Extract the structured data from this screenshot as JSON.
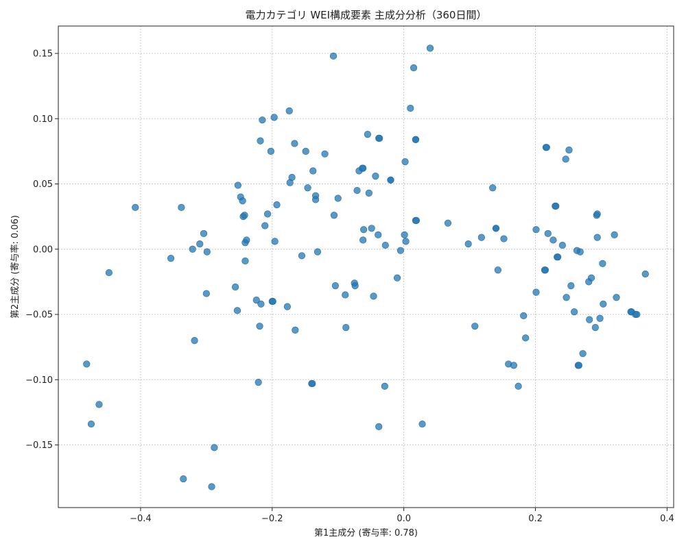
{
  "chart_data": {
    "type": "scatter",
    "title": "電力カテゴリ WEI構成要素 主成分分析（360日間）",
    "xlabel": "第1主成分 (寄与率: 0.78)",
    "ylabel": "第2主成分 (寄与率: 0.06)",
    "xlim": [
      -0.525,
      0.41
    ],
    "ylim": [
      -0.198,
      0.171
    ],
    "xticks": [
      -0.4,
      -0.2,
      0.0,
      0.2,
      0.4
    ],
    "xtick_labels": [
      "−0.4",
      "−0.2",
      "0.0",
      "0.2",
      "0.4"
    ],
    "yticks": [
      -0.15,
      -0.1,
      -0.05,
      0.0,
      0.05,
      0.1,
      0.15
    ],
    "ytick_labels": [
      "−0.15",
      "−0.10",
      "−0.05",
      "0.00",
      "0.05",
      "0.10",
      "0.15"
    ],
    "grid": true,
    "color": "#1f77b4",
    "points": [
      [
        -0.482,
        -0.088
      ],
      [
        -0.475,
        -0.134
      ],
      [
        -0.463,
        -0.119
      ],
      [
        -0.448,
        -0.018
      ],
      [
        -0.408,
        0.032
      ],
      [
        -0.354,
        -0.007
      ],
      [
        -0.338,
        0.032
      ],
      [
        -0.335,
        -0.176
      ],
      [
        -0.321,
        0.0
      ],
      [
        -0.318,
        -0.07
      ],
      [
        -0.31,
        0.004
      ],
      [
        -0.304,
        0.012
      ],
      [
        -0.3,
        -0.034
      ],
      [
        -0.299,
        -0.002
      ],
      [
        -0.292,
        -0.182
      ],
      [
        -0.288,
        -0.152
      ],
      [
        -0.256,
        -0.029
      ],
      [
        -0.253,
        -0.047
      ],
      [
        -0.252,
        0.049
      ],
      [
        -0.248,
        0.04
      ],
      [
        -0.245,
        0.037
      ],
      [
        -0.244,
        0.025
      ],
      [
        -0.242,
        0.026
      ],
      [
        -0.241,
        0.005
      ],
      [
        -0.241,
        -0.009
      ],
      [
        -0.239,
        0.007
      ],
      [
        -0.224,
        -0.039
      ],
      [
        -0.221,
        -0.102
      ],
      [
        -0.219,
        -0.059
      ],
      [
        -0.218,
        0.083
      ],
      [
        -0.217,
        -0.042
      ],
      [
        -0.215,
        0.099
      ],
      [
        -0.211,
        0.018
      ],
      [
        -0.207,
        0.027
      ],
      [
        -0.202,
        0.075
      ],
      [
        -0.2,
        -0.04
      ],
      [
        -0.199,
        -0.04
      ],
      [
        -0.197,
        0.101
      ],
      [
        -0.196,
        0.006
      ],
      [
        -0.193,
        0.034
      ],
      [
        -0.177,
        -0.044
      ],
      [
        -0.174,
        0.106
      ],
      [
        -0.173,
        0.051
      ],
      [
        -0.17,
        0.055
      ],
      [
        -0.166,
        0.081
      ],
      [
        -0.165,
        -0.062
      ],
      [
        -0.155,
        -0.005
      ],
      [
        -0.149,
        0.075
      ],
      [
        -0.146,
        0.047
      ],
      [
        -0.14,
        -0.103
      ],
      [
        -0.139,
        -0.103
      ],
      [
        -0.138,
        0.06
      ],
      [
        -0.134,
        0.041
      ],
      [
        -0.134,
        0.038
      ],
      [
        -0.131,
        -0.002
      ],
      [
        -0.12,
        0.073
      ],
      [
        -0.107,
        0.148
      ],
      [
        -0.106,
        0.026
      ],
      [
        -0.104,
        -0.028
      ],
      [
        -0.1,
        0.039
      ],
      [
        -0.089,
        -0.035
      ],
      [
        -0.088,
        -0.06
      ],
      [
        -0.075,
        -0.026
      ],
      [
        -0.074,
        -0.028
      ],
      [
        -0.071,
        0.045
      ],
      [
        -0.068,
        0.06
      ],
      [
        -0.063,
        0.062
      ],
      [
        -0.062,
        0.062
      ],
      [
        -0.062,
        0.007
      ],
      [
        -0.061,
        0.015
      ],
      [
        -0.055,
        0.088
      ],
      [
        -0.053,
        0.043
      ],
      [
        -0.049,
        0.016
      ],
      [
        -0.046,
        -0.036
      ],
      [
        -0.043,
        0.056
      ],
      [
        -0.039,
        0.011
      ],
      [
        -0.038,
        0.085
      ],
      [
        -0.038,
        -0.136
      ],
      [
        -0.037,
        0.085
      ],
      [
        -0.029,
        -0.105
      ],
      [
        -0.028,
        0.003
      ],
      [
        -0.02,
        0.053
      ],
      [
        -0.02,
        0.053
      ],
      [
        -0.01,
        -0.022
      ],
      [
        -0.005,
        -0.001
      ],
      [
        0.001,
        0.011
      ],
      [
        0.002,
        0.067
      ],
      [
        0.003,
        0.006
      ],
      [
        0.01,
        0.108
      ],
      [
        0.015,
        0.139
      ],
      [
        0.018,
        0.084
      ],
      [
        0.018,
        0.084
      ],
      [
        0.018,
        0.022
      ],
      [
        0.019,
        0.022
      ],
      [
        0.028,
        -0.134
      ],
      [
        0.04,
        0.154
      ],
      [
        0.067,
        0.02
      ],
      [
        0.098,
        0.004
      ],
      [
        0.108,
        -0.059
      ],
      [
        0.118,
        0.009
      ],
      [
        0.135,
        0.047
      ],
      [
        0.14,
        0.016
      ],
      [
        0.14,
        0.016
      ],
      [
        0.143,
        -0.016
      ],
      [
        0.152,
        0.008
      ],
      [
        0.159,
        -0.088
      ],
      [
        0.167,
        -0.089
      ],
      [
        0.174,
        -0.105
      ],
      [
        0.182,
        -0.051
      ],
      [
        0.185,
        -0.068
      ],
      [
        0.201,
        -0.033
      ],
      [
        0.201,
        0.015
      ],
      [
        0.214,
        -0.016
      ],
      [
        0.215,
        -0.016
      ],
      [
        0.216,
        0.078
      ],
      [
        0.217,
        0.078
      ],
      [
        0.219,
        0.012
      ],
      [
        0.227,
        0.007
      ],
      [
        0.23,
        0.033
      ],
      [
        0.231,
        0.033
      ],
      [
        0.233,
        -0.006
      ],
      [
        0.234,
        -0.006
      ],
      [
        0.241,
        0.003
      ],
      [
        0.246,
        0.069
      ],
      [
        0.247,
        -0.037
      ],
      [
        0.251,
        0.076
      ],
      [
        0.254,
        -0.028
      ],
      [
        0.259,
        -0.048
      ],
      [
        0.263,
        -0.001
      ],
      [
        0.265,
        -0.089
      ],
      [
        0.266,
        -0.089
      ],
      [
        0.268,
        -0.002
      ],
      [
        0.272,
        -0.08
      ],
      [
        0.281,
        -0.025
      ],
      [
        0.282,
        -0.054
      ],
      [
        0.285,
        -0.022
      ],
      [
        0.291,
        -0.06
      ],
      [
        0.293,
        0.026
      ],
      [
        0.294,
        0.027
      ],
      [
        0.294,
        0.009
      ],
      [
        0.298,
        -0.053
      ],
      [
        0.302,
        -0.011
      ],
      [
        0.303,
        -0.042
      ],
      [
        0.32,
        0.011
      ],
      [
        0.323,
        -0.037
      ],
      [
        0.345,
        -0.048
      ],
      [
        0.346,
        -0.048
      ],
      [
        0.352,
        -0.05
      ],
      [
        0.354,
        -0.05
      ],
      [
        0.367,
        -0.019
      ]
    ]
  }
}
